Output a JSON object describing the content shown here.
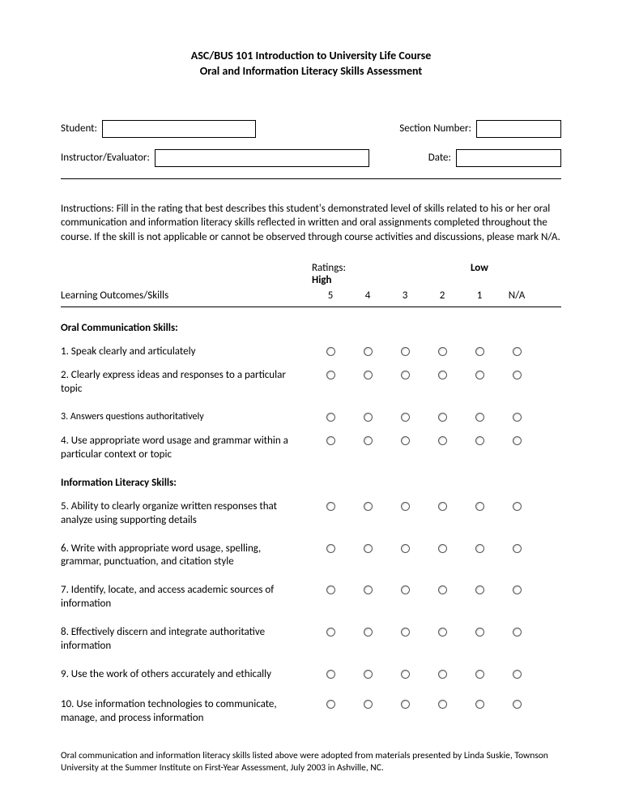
{
  "title1": "ASC/BUS 101 Introduction to University Life Course",
  "title2": "Oral and Information Literacy Skills Assessment",
  "labels": {
    "student": "Student:",
    "section": "Section Number:",
    "instructor": "Instructor/Evaluator:",
    "date": "Date:"
  },
  "fields": {
    "student": "",
    "section": "",
    "instructor": "",
    "date": ""
  },
  "instructions_bold": "Instructions:",
  "instructions_text": " Fill in the rating that best describes this student's demonstrated level of skills related to his or her oral communication  and information literacy skills reflected in written and oral assignments completed throughout the course.  If the skill is not applicable or cannot be observed through course  activities and discussions, please mark N/A.",
  "ratings_label": "Ratings:",
  "high": "High",
  "low": "Low",
  "learning_outcomes_label": "Learning Outcomes/Skills",
  "scale": {
    "c5": "5",
    "c4": "4",
    "c3": "3",
    "c2": "2",
    "c1": "1",
    "cna": "N/A"
  },
  "sections": {
    "oral_title": "Oral Communication Skills:",
    "info_title": "Information Literacy Skills:"
  },
  "skills": {
    "s1": "1.   Speak clearly and articulately",
    "s2": "2.   Clearly express ideas and responses to a particular topic",
    "s3": "3.   Answers questions authoritatively",
    "s4": "4.   Use appropriate word usage and grammar within a particular context or topic",
    "s5": "5.   Ability to clearly organize written responses that analyze using supporting details",
    "s6": "6.   Write with appropriate word usage, spelling, grammar, punctuation, and citation style",
    "s7": "7.   Identify, locate, and access academic sources of information",
    "s8": "8.   Effectively discern and integrate authoritative information",
    "s9": "9.   Use the work of others accurately and ethically",
    "s10": "10.  Use information technologies to communicate, manage, and process information"
  },
  "footer": "Oral communication and information literacy skills listed above were adopted from materials presented by Linda Suskie, Townson University at the Summer Institute on First-Year Assessment, July 2003 in Ashville, NC."
}
